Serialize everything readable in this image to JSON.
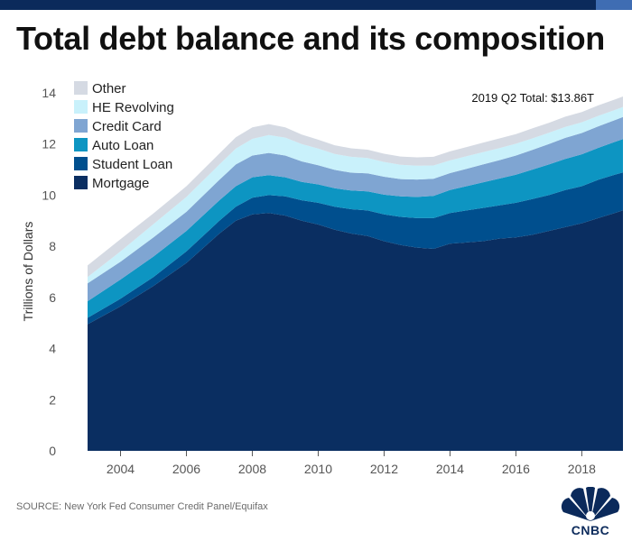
{
  "header": {
    "title": "Total debt balance and its composition"
  },
  "chart_data": {
    "type": "area",
    "stacked": true,
    "ylabel": "Trillions of Dollars",
    "ylim": [
      0,
      14
    ],
    "yticks": [
      0,
      2,
      4,
      6,
      8,
      10,
      12,
      14
    ],
    "xlim": [
      2003.0,
      2019.25
    ],
    "xticks": [
      2004,
      2006,
      2008,
      2010,
      2012,
      2014,
      2016,
      2018
    ],
    "grid": false,
    "legend_position": "top-left",
    "annotation": "2019 Q2 Total: $13.86T",
    "x": [
      2003.0,
      2004.0,
      2005.0,
      2006.0,
      2007.0,
      2007.5,
      2008.0,
      2008.5,
      2009.0,
      2009.5,
      2010.0,
      2010.5,
      2011.0,
      2011.5,
      2012.0,
      2012.5,
      2013.0,
      2013.5,
      2014.0,
      2014.5,
      2015.0,
      2015.5,
      2016.0,
      2016.5,
      2017.0,
      2017.5,
      2018.0,
      2018.5,
      2019.0,
      2019.25
    ],
    "series": [
      {
        "name": "Mortgage",
        "color": "#0a2e61",
        "values": [
          4.95,
          5.65,
          6.45,
          7.35,
          8.5,
          9.0,
          9.25,
          9.3,
          9.2,
          9.0,
          8.85,
          8.65,
          8.5,
          8.4,
          8.2,
          8.05,
          7.95,
          7.9,
          8.1,
          8.15,
          8.2,
          8.3,
          8.35,
          8.45,
          8.6,
          8.75,
          8.9,
          9.1,
          9.3,
          9.41
        ]
      },
      {
        "name": "Student Loan",
        "color": "#004f8e",
        "values": [
          0.25,
          0.3,
          0.35,
          0.45,
          0.5,
          0.55,
          0.65,
          0.7,
          0.75,
          0.8,
          0.85,
          0.9,
          0.95,
          1.0,
          1.05,
          1.1,
          1.15,
          1.2,
          1.2,
          1.25,
          1.3,
          1.3,
          1.35,
          1.4,
          1.4,
          1.45,
          1.45,
          1.5,
          1.5,
          1.48
        ]
      },
      {
        "name": "Auto Loan",
        "color": "#0d95c2",
        "values": [
          0.65,
          0.75,
          0.8,
          0.8,
          0.8,
          0.8,
          0.8,
          0.78,
          0.75,
          0.72,
          0.72,
          0.72,
          0.73,
          0.75,
          0.77,
          0.8,
          0.83,
          0.87,
          0.9,
          0.95,
          1.0,
          1.05,
          1.1,
          1.15,
          1.2,
          1.22,
          1.25,
          1.25,
          1.28,
          1.3
        ]
      },
      {
        "name": "Credit Card",
        "color": "#7fa5d2",
        "values": [
          0.7,
          0.7,
          0.75,
          0.75,
          0.8,
          0.85,
          0.85,
          0.87,
          0.85,
          0.8,
          0.75,
          0.72,
          0.7,
          0.7,
          0.7,
          0.68,
          0.68,
          0.67,
          0.66,
          0.68,
          0.7,
          0.72,
          0.75,
          0.77,
          0.8,
          0.82,
          0.83,
          0.84,
          0.85,
          0.87
        ]
      },
      {
        "name": "HE Revolving",
        "color": "#c9f1fb",
        "values": [
          0.25,
          0.4,
          0.52,
          0.58,
          0.6,
          0.62,
          0.65,
          0.7,
          0.7,
          0.68,
          0.65,
          0.62,
          0.62,
          0.6,
          0.58,
          0.56,
          0.54,
          0.52,
          0.5,
          0.49,
          0.48,
          0.47,
          0.46,
          0.45,
          0.44,
          0.43,
          0.42,
          0.41,
          0.4,
          0.39
        ]
      },
      {
        "name": "Other",
        "color": "#d5dae3",
        "values": [
          0.45,
          0.48,
          0.42,
          0.42,
          0.43,
          0.44,
          0.45,
          0.43,
          0.4,
          0.37,
          0.35,
          0.34,
          0.33,
          0.33,
          0.32,
          0.32,
          0.33,
          0.34,
          0.35,
          0.36,
          0.37,
          0.38,
          0.38,
          0.39,
          0.39,
          0.4,
          0.4,
          0.41,
          0.41,
          0.41
        ]
      }
    ]
  },
  "footer": {
    "source": "SOURCE: New York Fed Consumer Credit Panel/Equifax",
    "logo_text": "CNBC"
  }
}
